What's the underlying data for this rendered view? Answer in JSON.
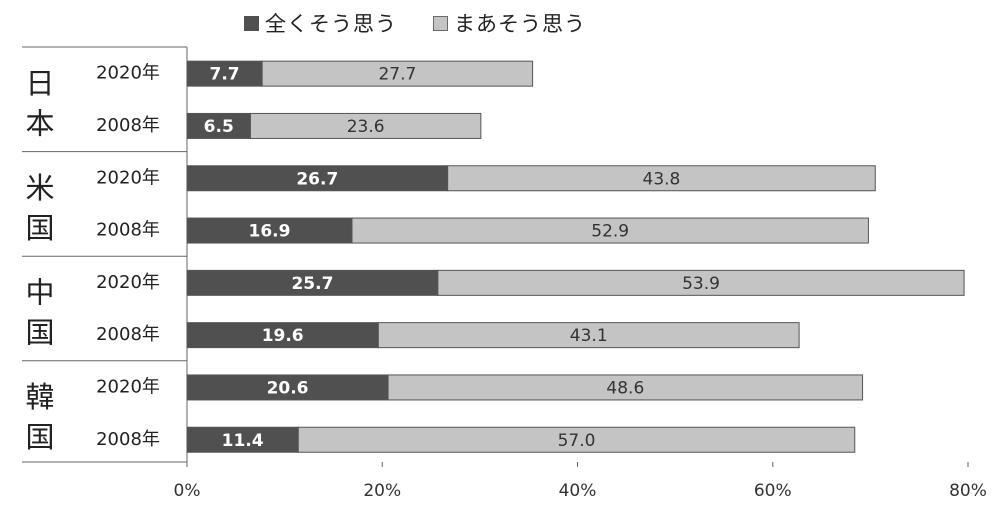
{
  "colors": {
    "series_dark": "#505050",
    "series_light": "#c4c4c4",
    "bar_border": "#555555",
    "grid": "#888888"
  },
  "chart_data": {
    "type": "bar",
    "orientation": "horizontal",
    "stacked": true,
    "title": "",
    "xlabel": "",
    "ylabel": "",
    "xlim": [
      0,
      80
    ],
    "x_ticks": [
      "0%",
      "20%",
      "40%",
      "60%",
      "80%"
    ],
    "legend": {
      "placement": "top",
      "entries": [
        "全くそう思う",
        "まあそう思う"
      ]
    },
    "groups": [
      {
        "label": "日本",
        "rows": [
          {
            "label": "2020年",
            "values": [
              7.7,
              27.7
            ]
          },
          {
            "label": "2008年",
            "values": [
              6.5,
              23.6
            ]
          }
        ]
      },
      {
        "label": "米国",
        "rows": [
          {
            "label": "2020年",
            "values": [
              26.7,
              43.8
            ]
          },
          {
            "label": "2008年",
            "values": [
              16.9,
              52.9
            ]
          }
        ]
      },
      {
        "label": "中国",
        "rows": [
          {
            "label": "2020年",
            "values": [
              25.7,
              53.9
            ]
          },
          {
            "label": "2008年",
            "values": [
              19.6,
              43.1
            ]
          }
        ]
      },
      {
        "label": "韓国",
        "rows": [
          {
            "label": "2020年",
            "values": [
              20.6,
              48.6
            ]
          },
          {
            "label": "2008年",
            "values": [
              11.4,
              57.0
            ]
          }
        ]
      }
    ],
    "series": [
      {
        "name": "全くそう思う",
        "values": [
          7.7,
          6.5,
          26.7,
          16.9,
          25.7,
          19.6,
          20.6,
          11.4
        ]
      },
      {
        "name": "まあそう思う",
        "values": [
          27.7,
          23.6,
          43.8,
          52.9,
          53.9,
          43.1,
          48.6,
          57.0
        ]
      }
    ],
    "data_label_text": [
      [
        "7.7",
        "6.5",
        "26.7",
        "16.9",
        "25.7",
        "19.6",
        "20.6",
        "11.4"
      ],
      [
        "27.7",
        "23.6",
        "43.8",
        "52.9",
        "53.9",
        "43.1",
        "48.6",
        "57.0"
      ]
    ]
  }
}
